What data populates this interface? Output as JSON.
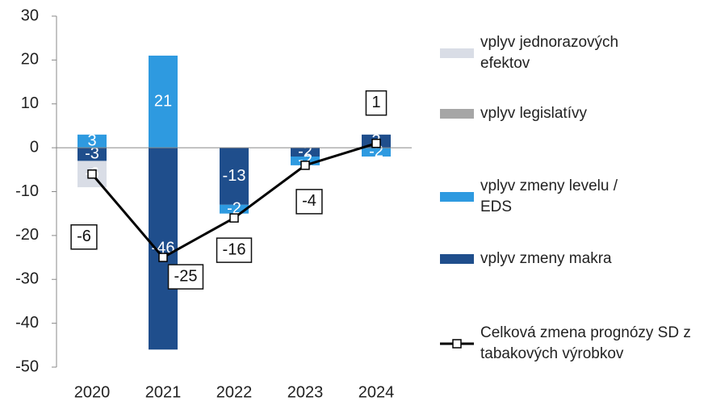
{
  "chart_data": {
    "type": "bar",
    "categories": [
      "2020",
      "2021",
      "2022",
      "2023",
      "2024"
    ],
    "series": [
      {
        "name": "vplyv zmeny makra",
        "color": "#1f4e8c",
        "values": [
          -3,
          -46,
          -13,
          -2,
          3
        ]
      },
      {
        "name": "vplyv zmeny levelu / EDS",
        "color": "#2e9ae0",
        "values": [
          3,
          21,
          -2,
          -2,
          -2
        ]
      },
      {
        "name": "vplyv legislatívy",
        "color": "#a6a6a6",
        "values": [
          null,
          null,
          null,
          null,
          null
        ]
      },
      {
        "name": "vplyv jednorazových efektov",
        "color": "#d9dde6",
        "values": [
          -6,
          null,
          null,
          null,
          null
        ]
      },
      {
        "name": "Celková zmena prognózy SD z tabakových výrobkov",
        "type": "line",
        "color": "#000000",
        "values": [
          -6,
          -25,
          -16,
          -4,
          1
        ]
      }
    ],
    "ylim": [
      -50,
      30
    ],
    "yticks": [
      -50,
      -40,
      -30,
      -20,
      -10,
      0,
      10,
      20,
      30
    ]
  }
}
